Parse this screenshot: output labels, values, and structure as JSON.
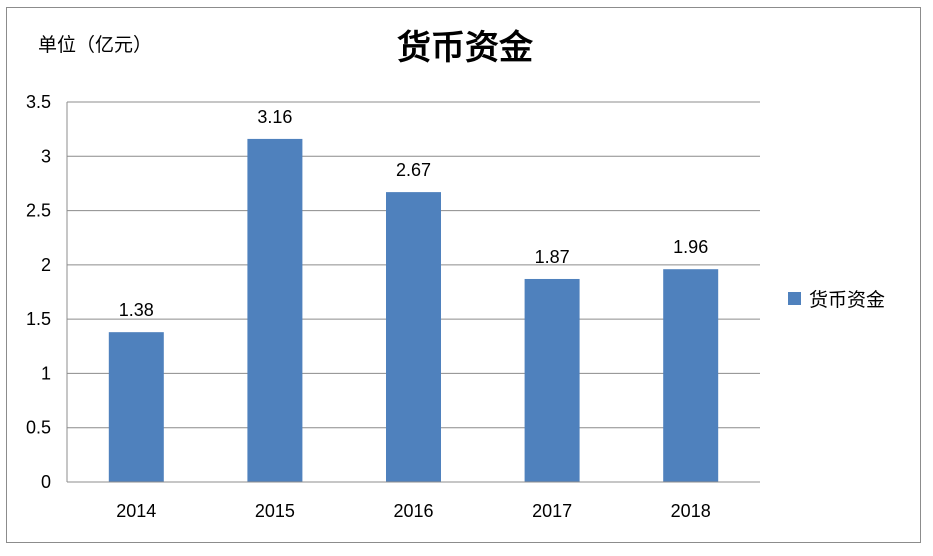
{
  "unit_label": "单位（亿元）",
  "chart_data": {
    "type": "bar",
    "title": "货币资金",
    "xlabel": "",
    "ylabel": "",
    "categories": [
      "2014",
      "2015",
      "2016",
      "2017",
      "2018"
    ],
    "series": [
      {
        "name": "货币资金",
        "values": [
          1.38,
          3.16,
          2.67,
          1.87,
          1.96
        ],
        "color": "#4f81bd"
      }
    ],
    "data_labels": [
      "1.38",
      "3.16",
      "2.67",
      "1.87",
      "1.96"
    ],
    "ylim": [
      0,
      3.5
    ],
    "yticks": [
      "0",
      "0.5",
      "1",
      "1.5",
      "2",
      "2.5",
      "3",
      "3.5"
    ],
    "grid": true,
    "legend_position": "right"
  }
}
